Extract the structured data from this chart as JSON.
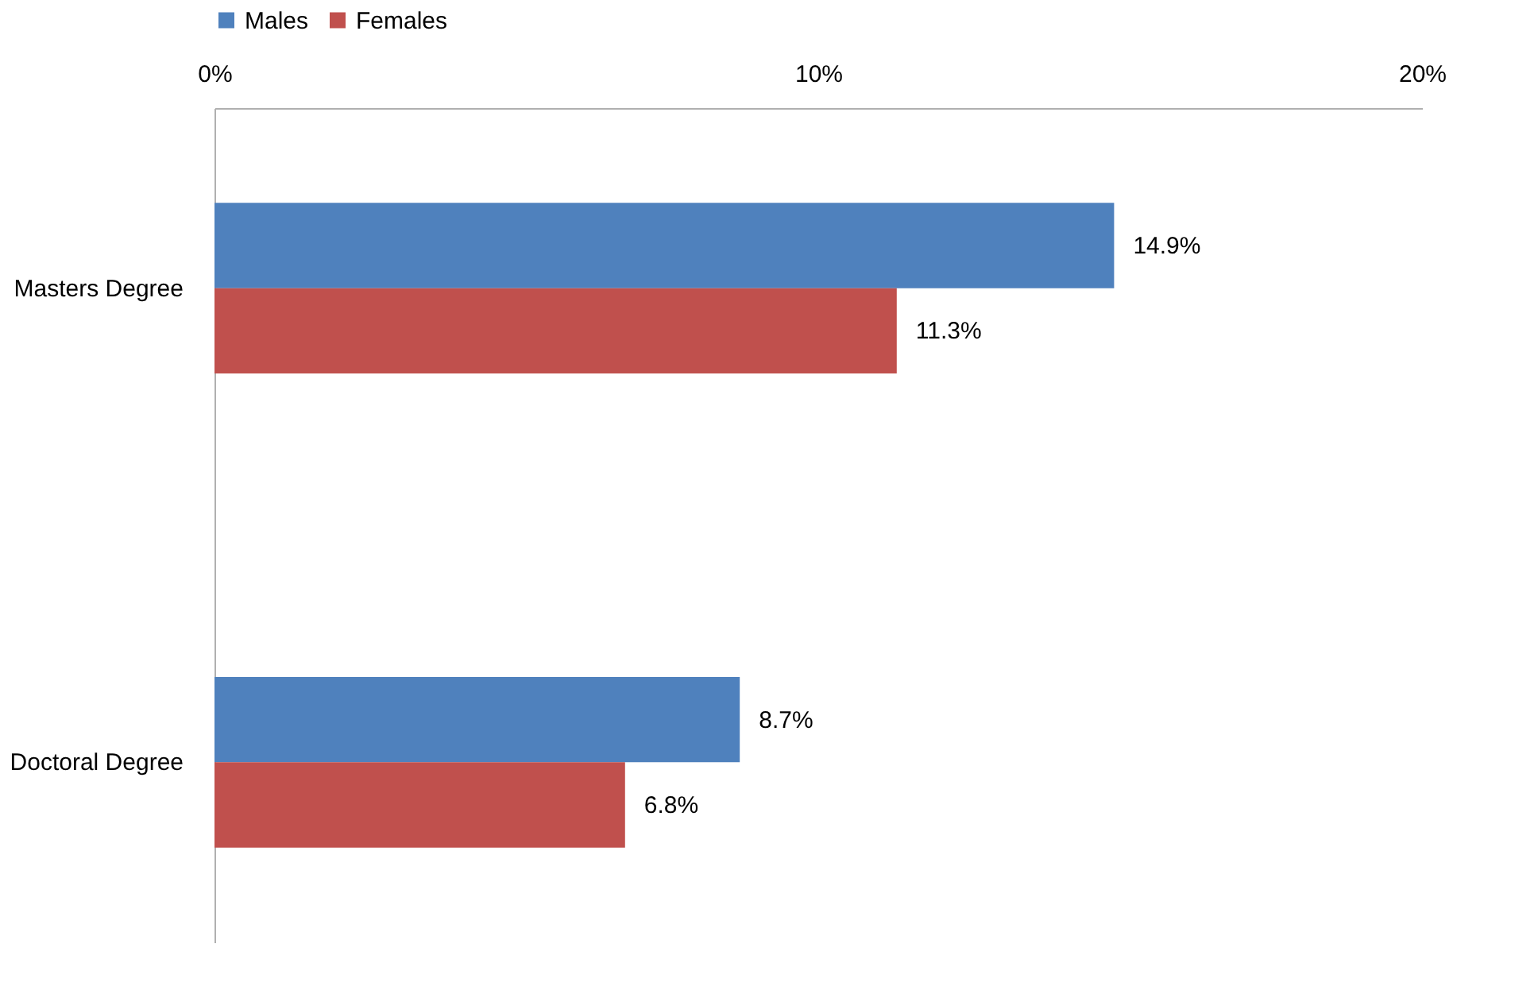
{
  "chart_data": {
    "type": "bar",
    "orientation": "horizontal",
    "categories": [
      "Masters Degree",
      "Doctoral Degree"
    ],
    "series": [
      {
        "name": "Males",
        "color": "#4f81bd",
        "values": [
          14.9,
          8.7
        ],
        "value_labels": [
          "14.9%",
          "8.7%"
        ]
      },
      {
        "name": "Females",
        "color": "#c0504d",
        "values": [
          11.3,
          6.8
        ],
        "value_labels": [
          "11.3%",
          "6.8%"
        ]
      }
    ],
    "xlim": [
      0,
      20
    ],
    "xticks": [
      {
        "value": 0,
        "label": "0%"
      },
      {
        "value": 10,
        "label": "10%"
      },
      {
        "value": 20,
        "label": "20%"
      }
    ],
    "grid": false,
    "legend": "top"
  }
}
